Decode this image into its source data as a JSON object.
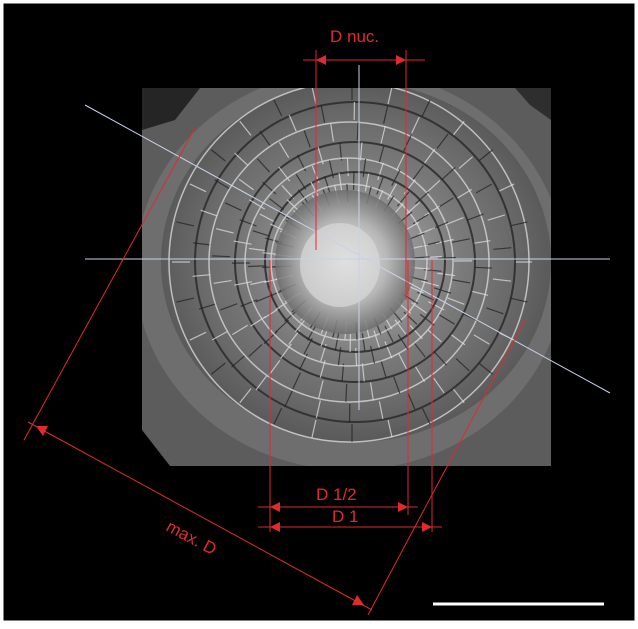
{
  "figure": {
    "labels": {
      "d_nuc": "D nuc.",
      "d_half": "D 1/2",
      "d_one": "D 1",
      "max_d": "max. D"
    },
    "colors": {
      "background": "#000000",
      "border": "#ffffff",
      "annotation": "#e02a2e",
      "guide_line": "#c8d2e6",
      "scale_bar": "#ffffff"
    },
    "image_subject": "spiral-foraminifera-shell-micrograph",
    "has_scale_bar": true
  }
}
